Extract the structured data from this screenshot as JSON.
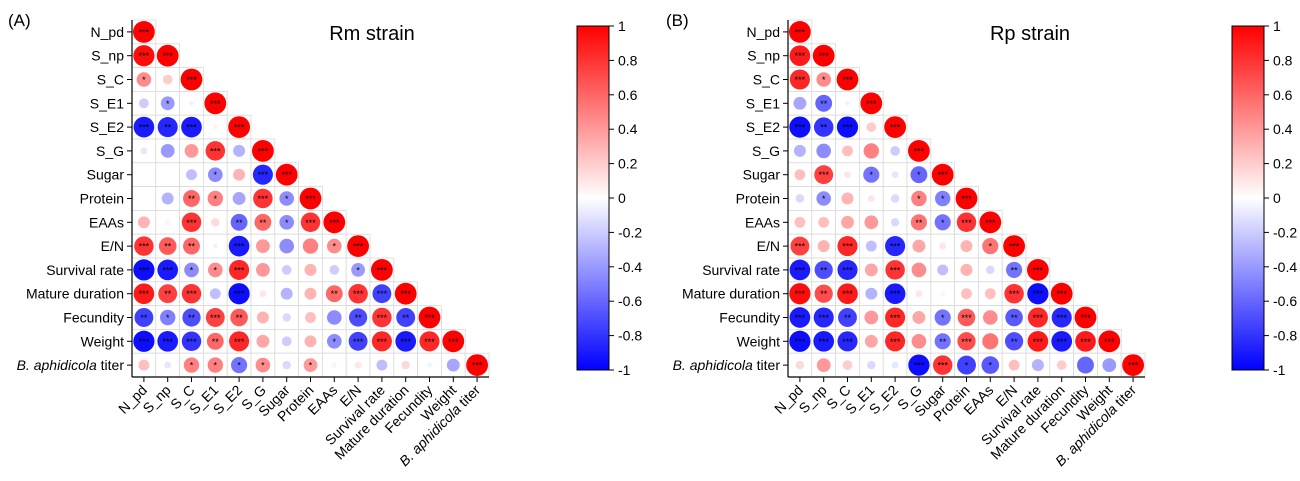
{
  "chart_data": [
    {
      "type": "heatmap",
      "panel_label": "(A)",
      "title": "Rm strain",
      "variables": [
        "N_pd",
        "S_np",
        "S_C",
        "S_E1",
        "S_E2",
        "S_G",
        "Sugar",
        "Protein",
        "EAAs",
        "E/N",
        "Survival rate",
        "Mature duration",
        "Fecundity",
        "Weight",
        "B. aphidicola titer"
      ],
      "italic_prefix": {
        "B. aphidicola titer": "B. aphidicola"
      },
      "colorbar": {
        "min": -1,
        "max": 1,
        "ticks": [
          "1",
          "0.8",
          "0.6",
          "0.4",
          "0.2",
          "0",
          "-0.2",
          "-0.4",
          "-0.6",
          "-0.8",
          "-1"
        ]
      },
      "colors": {
        "negative": "#0000ff",
        "zero": "#ffffff",
        "positive": "#ff0000"
      },
      "rows": [
        {
          "r": [
            1.0
          ],
          "sig": [
            "***"
          ]
        },
        {
          "r": [
            0.95,
            1.0
          ],
          "sig": [
            "***",
            "***"
          ]
        },
        {
          "r": [
            0.45,
            0.2,
            1.0
          ],
          "sig": [
            "*",
            "",
            "***"
          ]
        },
        {
          "r": [
            -0.2,
            -0.4,
            -0.05,
            1.0
          ],
          "sig": [
            "",
            "*",
            "",
            "***"
          ]
        },
        {
          "r": [
            -0.9,
            -0.85,
            -0.9,
            0.05,
            1.0
          ],
          "sig": [
            "***",
            "**",
            "***",
            "",
            "***"
          ]
        },
        {
          "r": [
            -0.1,
            -0.4,
            0.4,
            0.8,
            -0.3,
            1.0
          ],
          "sig": [
            "",
            "",
            "",
            "***",
            "",
            "***"
          ]
        },
        {
          "r": [
            0.0,
            0.0,
            -0.25,
            -0.45,
            0.3,
            -0.85,
            1.0
          ],
          "sig": [
            "",
            "",
            "",
            "*",
            "",
            "***",
            "***"
          ]
        },
        {
          "r": [
            0.0,
            -0.3,
            0.6,
            0.5,
            -0.35,
            0.8,
            -0.45,
            1.0
          ],
          "sig": [
            "",
            "",
            "**",
            "*",
            "",
            "***",
            "*",
            "***"
          ]
        },
        {
          "r": [
            0.3,
            0.05,
            0.8,
            0.15,
            -0.6,
            0.6,
            -0.45,
            0.8,
            1.0
          ],
          "sig": [
            "",
            "",
            "***",
            "",
            "**",
            "**",
            "*",
            "***",
            "***"
          ]
        },
        {
          "r": [
            0.8,
            0.65,
            0.6,
            -0.05,
            -0.9,
            0.4,
            -0.45,
            0.5,
            0.45,
            1.0
          ],
          "sig": [
            "***",
            "**",
            "**",
            "",
            "***",
            "",
            "",
            "",
            "*",
            "***"
          ]
        },
        {
          "r": [
            -0.95,
            -0.9,
            -0.45,
            0.45,
            0.85,
            0.4,
            -0.2,
            0.3,
            -0.2,
            -0.4,
            1.0
          ],
          "sig": [
            "***",
            "***",
            "*",
            "*",
            "***",
            "",
            "",
            "",
            "",
            "*",
            "***"
          ]
        },
        {
          "r": [
            0.9,
            0.75,
            0.8,
            -0.25,
            -0.95,
            0.1,
            -0.3,
            0.3,
            0.6,
            0.8,
            -0.75,
            1.0
          ],
          "sig": [
            "***",
            "**",
            "***",
            "",
            "***",
            "",
            "",
            "",
            "**",
            "***",
            "***",
            "***"
          ]
        },
        {
          "r": [
            -0.75,
            -0.5,
            -0.7,
            0.75,
            0.65,
            0.3,
            -0.15,
            0.25,
            -0.45,
            -0.7,
            0.8,
            -0.75,
            1.0
          ],
          "sig": [
            "**",
            "*",
            "**",
            "***",
            "**",
            "",
            "",
            "",
            "",
            "**",
            "***",
            "**",
            "***"
          ]
        },
        {
          "r": [
            -0.95,
            -0.9,
            -0.8,
            0.6,
            0.85,
            0.35,
            -0.2,
            0.3,
            -0.45,
            -0.75,
            0.85,
            -0.9,
            0.85,
            1.0
          ],
          "sig": [
            "***",
            "***",
            "***",
            "**",
            "***",
            "",
            "",
            "",
            "*",
            "***",
            "***",
            "***",
            "***",
            "***"
          ]
        },
        {
          "r": [
            0.25,
            -0.1,
            0.5,
            0.5,
            -0.55,
            0.45,
            -0.15,
            0.4,
            0.05,
            0.1,
            -0.25,
            0.15,
            -0.05,
            -0.35,
            1.0
          ],
          "sig": [
            "",
            "",
            "*",
            "*",
            "*",
            "*",
            "",
            "*",
            "",
            "",
            "",
            "",
            "",
            "",
            "***"
          ]
        }
      ]
    },
    {
      "type": "heatmap",
      "panel_label": "(B)",
      "title": "Rp strain",
      "variables": [
        "N_pd",
        "S_np",
        "S_C",
        "S_E1",
        "S_E2",
        "S_G",
        "Sugar",
        "Protein",
        "EAAs",
        "E/N",
        "Survival rate",
        "Mature duration",
        "Fecundity",
        "Weight",
        "B. aphidicola titer"
      ],
      "italic_prefix": {
        "B. aphidicola titer": "B. aphidicola"
      },
      "colorbar": {
        "min": -1,
        "max": 1,
        "ticks": [
          "1",
          "0.8",
          "0.6",
          "0.4",
          "0.2",
          "0",
          "-0.2",
          "-0.4",
          "-0.6",
          "-0.8",
          "-1"
        ]
      },
      "colors": {
        "negative": "#0000ff",
        "zero": "#ffffff",
        "positive": "#ff0000"
      },
      "rows": [
        {
          "r": [
            1.0
          ],
          "sig": [
            "***"
          ]
        },
        {
          "r": [
            0.9,
            1.0
          ],
          "sig": [
            "***",
            "***"
          ]
        },
        {
          "r": [
            0.85,
            0.45,
            1.0
          ],
          "sig": [
            "***",
            "*",
            "***"
          ]
        },
        {
          "r": [
            -0.35,
            -0.6,
            -0.05,
            1.0
          ],
          "sig": [
            "",
            "**",
            "",
            "***"
          ]
        },
        {
          "r": [
            -0.95,
            -0.8,
            -0.95,
            0.2,
            1.0
          ],
          "sig": [
            "***",
            "**",
            "***",
            "",
            "***"
          ]
        },
        {
          "r": [
            -0.3,
            -0.45,
            0.25,
            0.5,
            -0.2,
            1.0
          ],
          "sig": [
            "",
            "",
            "",
            "",
            "",
            "***"
          ]
        },
        {
          "r": [
            0.25,
            0.75,
            0.1,
            -0.55,
            -0.1,
            -0.6,
            1.0
          ],
          "sig": [
            "",
            "***",
            "",
            "*",
            "",
            "*",
            "***"
          ]
        },
        {
          "r": [
            -0.15,
            -0.45,
            0.3,
            0.1,
            -0.15,
            0.5,
            -0.5,
            1.0
          ],
          "sig": [
            "",
            "*",
            "",
            "",
            "",
            "*",
            "*",
            "***"
          ]
        },
        {
          "r": [
            0.25,
            0.25,
            0.35,
            0.4,
            -0.15,
            0.55,
            -0.55,
            0.8,
            1.0
          ],
          "sig": [
            "",
            "",
            "",
            "",
            "",
            "**",
            "*",
            "***",
            "***"
          ]
        },
        {
          "r": [
            0.75,
            0.3,
            0.85,
            -0.25,
            -0.85,
            0.35,
            0.1,
            0.3,
            0.55,
            1.0
          ],
          "sig": [
            "***",
            "",
            "***",
            "",
            "***",
            "",
            "",
            "",
            "*",
            "***"
          ]
        },
        {
          "r": [
            -0.9,
            -0.7,
            -0.85,
            0.35,
            0.8,
            0.45,
            -0.25,
            0.3,
            -0.15,
            -0.55,
            1.0
          ],
          "sig": [
            "***",
            "**",
            "***",
            "",
            "***",
            "",
            "",
            "",
            "",
            "**",
            "***"
          ]
        },
        {
          "r": [
            0.95,
            0.7,
            0.9,
            -0.3,
            -0.9,
            0.1,
            0.05,
            0.25,
            0.25,
            0.8,
            -0.95,
            1.0
          ],
          "sig": [
            "***",
            "**",
            "***",
            "",
            "***",
            "",
            "",
            "",
            "",
            "***",
            "***",
            "***"
          ]
        },
        {
          "r": [
            -0.9,
            -0.85,
            -0.75,
            0.4,
            0.85,
            0.35,
            -0.55,
            0.65,
            0.45,
            -0.65,
            0.85,
            -0.85,
            1.0
          ],
          "sig": [
            "***",
            "***",
            "**",
            "",
            "***",
            "",
            "*",
            "***",
            "",
            "**",
            "***",
            "***",
            "***"
          ]
        },
        {
          "r": [
            -0.95,
            -0.9,
            -0.85,
            0.35,
            0.85,
            0.45,
            -0.55,
            0.7,
            0.55,
            -0.7,
            0.9,
            -0.9,
            0.9,
            1.0
          ],
          "sig": [
            "***",
            "***",
            "***",
            "",
            "***",
            "",
            "**",
            "***",
            "",
            "**",
            "***",
            "***",
            "***",
            "***"
          ]
        },
        {
          "r": [
            0.15,
            0.4,
            0.2,
            -0.15,
            -0.1,
            -0.95,
            0.8,
            -0.75,
            -0.65,
            0.25,
            -0.3,
            0.2,
            -0.6,
            -0.4,
            1.0
          ],
          "sig": [
            "",
            "",
            "",
            "",
            "",
            "***",
            "***",
            "*",
            "*",
            "",
            "",
            "",
            "",
            "",
            "***"
          ]
        }
      ]
    }
  ]
}
